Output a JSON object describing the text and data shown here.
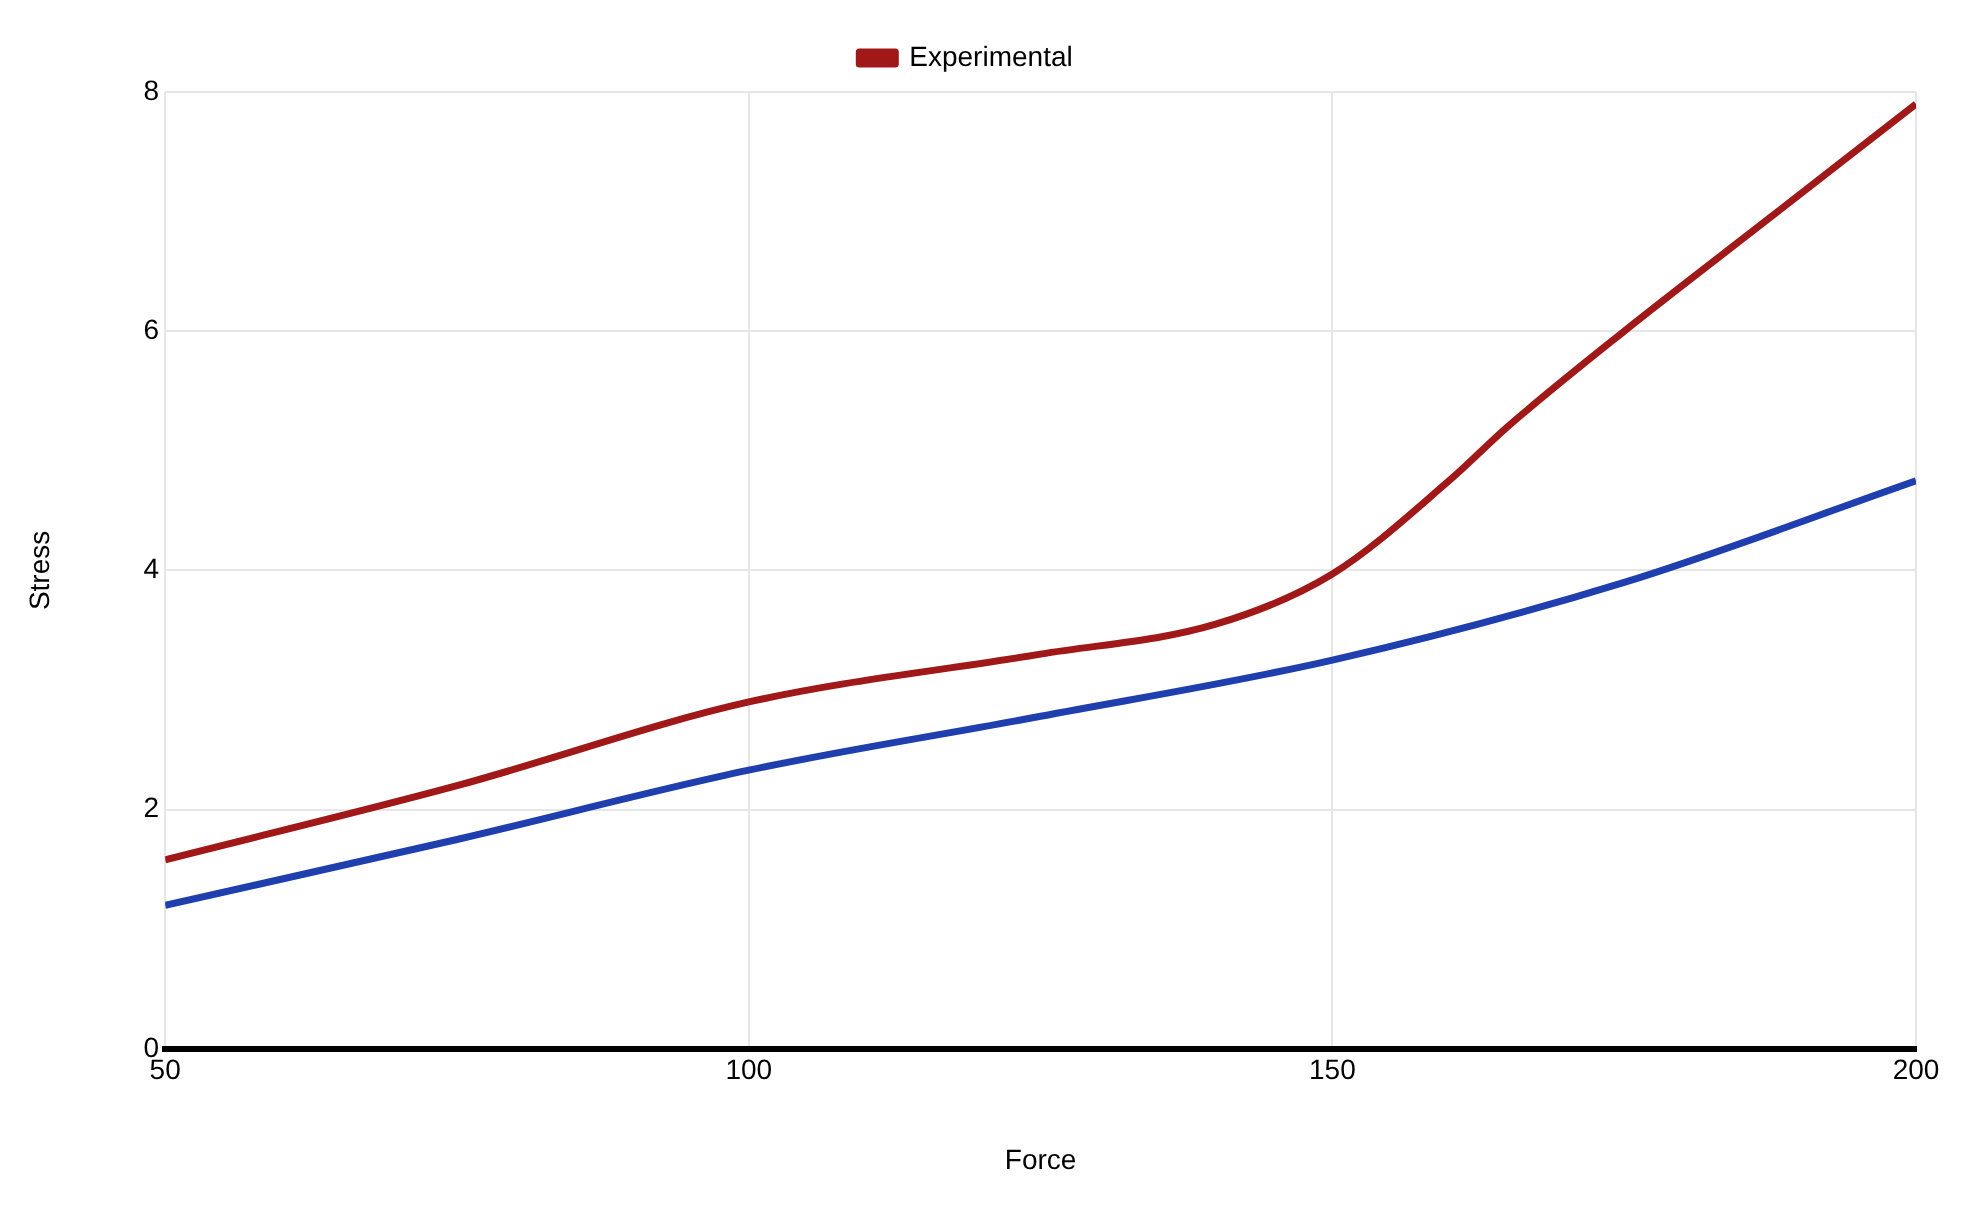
{
  "chart_data": {
    "type": "line",
    "xlabel": "Force",
    "ylabel": "Stress",
    "xlim": [
      50,
      200
    ],
    "xticks": [
      50,
      100,
      150,
      200
    ],
    "ylim": [
      0,
      8
    ],
    "yticks": [
      0,
      2,
      4,
      6,
      8
    ],
    "grid": true,
    "legend": "top",
    "marker": "none",
    "line_style": "solid",
    "series": [
      {
        "color": "#1f3fae",
        "x": [
          50,
          75,
          100,
          125,
          150,
          175,
          200
        ],
        "values": [
          1.2,
          1.75,
          2.33,
          2.78,
          3.25,
          3.9,
          4.75
        ]
      },
      {
        "name": "Experimental",
        "color": "#a01818",
        "x": [
          50,
          75,
          100,
          125,
          140,
          150,
          160,
          165,
          175,
          187.5,
          200
        ],
        "values": [
          1.58,
          2.2,
          2.9,
          3.3,
          3.55,
          3.97,
          4.75,
          5.2,
          6.0,
          6.95,
          7.9
        ]
      }
    ]
  }
}
